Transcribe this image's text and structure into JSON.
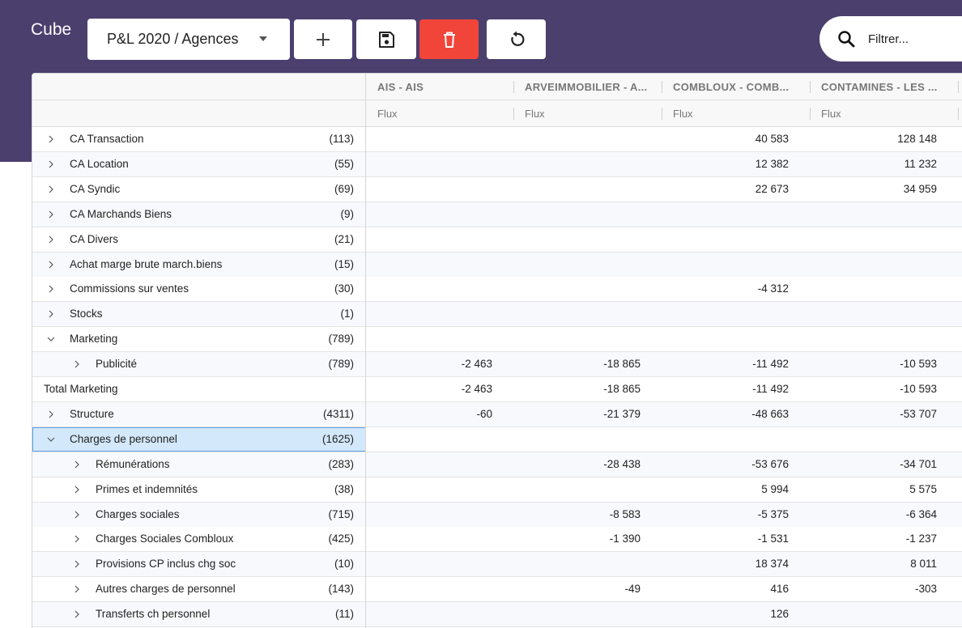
{
  "app": {
    "title": "Cube"
  },
  "toolbar": {
    "cube_selector_value": "P&L 2020 / Agences",
    "add_icon": "plus-icon",
    "save_icon": "floppy-disk-icon",
    "delete_icon": "trash-icon",
    "refresh_icon": "refresh-icon",
    "delete_color": "#f2453a"
  },
  "search": {
    "placeholder": "Filtrer..."
  },
  "colors": {
    "header_bg": "#4b3f6e",
    "selected_bg": "#d3e8fa",
    "selected_border": "#5aa1e3"
  },
  "grid": {
    "columns": [
      "AIS - AIS",
      "ARVEIMMOBILIER - A...",
      "COMBLOUX - COMB...",
      "CONTAMINES - LES ..."
    ],
    "subheaders": [
      "Flux",
      "Flux",
      "Flux",
      "Flux"
    ],
    "rows": [
      {
        "label": "CA Transaction",
        "count": "(113)",
        "level": 0,
        "chevron": "right",
        "values": [
          "",
          "",
          "40 583",
          "128 148"
        ]
      },
      {
        "label": "CA Location",
        "count": "(55)",
        "level": 0,
        "chevron": "right",
        "values": [
          "",
          "",
          "12 382",
          "11 232"
        ]
      },
      {
        "label": "CA Syndic",
        "count": "(69)",
        "level": 0,
        "chevron": "right",
        "values": [
          "",
          "",
          "22 673",
          "34 959"
        ]
      },
      {
        "label": "CA Marchands Biens",
        "count": "(9)",
        "level": 0,
        "chevron": "right",
        "values": [
          "",
          "",
          "",
          ""
        ]
      },
      {
        "label": "CA Divers",
        "count": "(21)",
        "level": 0,
        "chevron": "right",
        "values": [
          "",
          "",
          "",
          ""
        ]
      },
      {
        "label": "Achat marge brute march.biens",
        "count": "(15)",
        "level": 0,
        "chevron": "right",
        "values": [
          "",
          "",
          "",
          ""
        ]
      },
      {
        "label": "Commissions sur ventes",
        "count": "(30)",
        "level": 0,
        "chevron": "right",
        "values": [
          "",
          "",
          "-4 312",
          ""
        ]
      },
      {
        "label": "Stocks",
        "count": "(1)",
        "level": 0,
        "chevron": "right",
        "values": [
          "",
          "",
          "",
          ""
        ]
      },
      {
        "label": "Marketing",
        "count": "(789)",
        "level": 0,
        "chevron": "down",
        "values": [
          "",
          "",
          "",
          ""
        ]
      },
      {
        "label": "Publicité",
        "count": "(789)",
        "level": 1,
        "chevron": "right",
        "values": [
          "-2 463",
          "-18 865",
          "-11 492",
          "-10 593"
        ]
      },
      {
        "label": "Total Marketing",
        "count": "",
        "level": -1,
        "chevron": "none",
        "values": [
          "-2 463",
          "-18 865",
          "-11 492",
          "-10 593"
        ]
      },
      {
        "label": "Structure",
        "count": "(4311)",
        "level": 0,
        "chevron": "right",
        "values": [
          "-60",
          "-21 379",
          "-48 663",
          "-53 707"
        ]
      },
      {
        "label": "Charges de personnel",
        "count": "(1625)",
        "level": 0,
        "chevron": "down",
        "selected": true,
        "values": [
          "",
          "",
          "",
          ""
        ]
      },
      {
        "label": "Rémunérations",
        "count": "(283)",
        "level": 1,
        "chevron": "right",
        "values": [
          "",
          "-28 438",
          "-53 676",
          "-34 701"
        ]
      },
      {
        "label": "Primes et indemnités",
        "count": "(38)",
        "level": 1,
        "chevron": "right",
        "values": [
          "",
          "",
          "5 994",
          "5 575"
        ]
      },
      {
        "label": "Charges sociales",
        "count": "(715)",
        "level": 1,
        "chevron": "right",
        "values": [
          "",
          "-8 583",
          "-5 375",
          "-6 364"
        ]
      },
      {
        "label": "Charges Sociales Combloux",
        "count": "(425)",
        "level": 1,
        "chevron": "right",
        "values": [
          "",
          "-1 390",
          "-1 531",
          "-1 237"
        ]
      },
      {
        "label": "Provisions CP inclus chg soc",
        "count": "(10)",
        "level": 1,
        "chevron": "right",
        "values": [
          "",
          "",
          "18 374",
          "8 011"
        ]
      },
      {
        "label": "Autres charges de personnel",
        "count": "(143)",
        "level": 1,
        "chevron": "right",
        "values": [
          "",
          "-49",
          "416",
          "-303"
        ]
      },
      {
        "label": "Transferts ch personnel",
        "count": "(11)",
        "level": 1,
        "chevron": "right",
        "values": [
          "",
          "",
          "126",
          ""
        ]
      }
    ]
  }
}
